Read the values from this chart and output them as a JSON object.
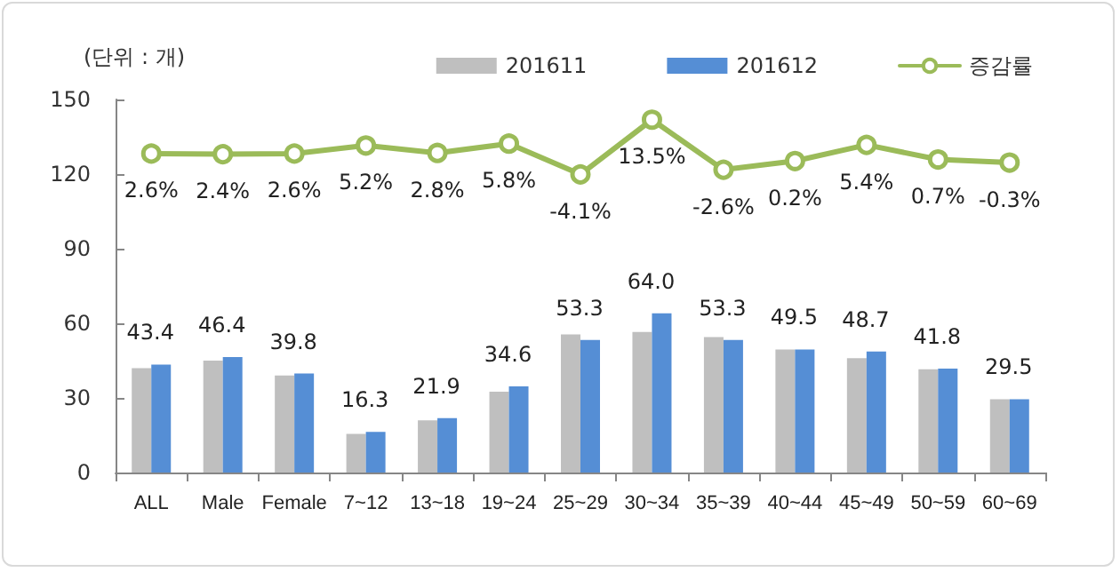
{
  "chart_data": {
    "type": "bar",
    "ylabel": "(단위 : 개)",
    "categories": [
      "ALL",
      "Male",
      "Female",
      "7~12",
      "13~18",
      "19~24",
      "25~29",
      "30~34",
      "35~39",
      "40~44",
      "45~49",
      "50~59",
      "60~69"
    ],
    "series": [
      {
        "name": "201611",
        "color": "#bfbfbf",
        "values": [
          42,
          45,
          39,
          15.5,
          21,
          32.5,
          55.5,
          56.5,
          54.5,
          49.5,
          46,
          41.5,
          29.5
        ]
      },
      {
        "name": "201612",
        "color": "#558ed5",
        "values": [
          43.4,
          46.4,
          39.8,
          16.3,
          21.9,
          34.6,
          53.3,
          64.0,
          53.3,
          49.5,
          48.7,
          41.8,
          29.5
        ],
        "value_labels": [
          "43.4",
          "46.4",
          "39.8",
          "16.3",
          "21.9",
          "34.6",
          "53.3",
          "64.0",
          "53.3",
          "49.5",
          "48.7",
          "41.8",
          "29.5"
        ]
      },
      {
        "name": "증감률",
        "type": "line",
        "axis": "y2",
        "color": "#9bbb59",
        "values": [
          2.6,
          2.4,
          2.6,
          5.2,
          2.8,
          5.8,
          -4.1,
          13.5,
          -2.6,
          0.2,
          5.4,
          0.7,
          -0.3
        ],
        "value_labels": [
          "2.6%",
          "2.4%",
          "2.6%",
          "5.2%",
          "2.8%",
          "5.8%",
          "-4.1%",
          "13.5%",
          "-2.6%",
          "0.2%",
          "5.4%",
          "0.7%",
          "-0.3%"
        ]
      }
    ],
    "ylim": [
      0,
      150
    ],
    "yticks": [
      0,
      30,
      60,
      90,
      120,
      150
    ],
    "y2lim": [
      -100,
      20
    ],
    "grid": false,
    "legend": "top right",
    "marker": "circle",
    "line_style": "solid"
  }
}
